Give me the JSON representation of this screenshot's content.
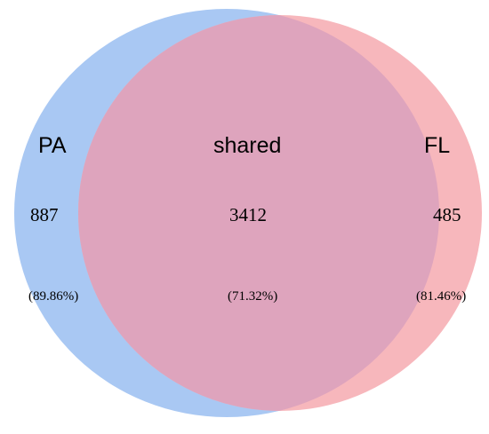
{
  "venn": {
    "left": {
      "label": "PA",
      "count": "887",
      "percent": "(89.86%)",
      "color": "#a9c8f3"
    },
    "right": {
      "label": "FL",
      "count": "485",
      "percent": "(81.46%)",
      "color": "#f7b7bc"
    },
    "shared": {
      "label": "shared",
      "count": "3412",
      "percent": "(71.32%)",
      "color": "#dea4bd"
    }
  }
}
